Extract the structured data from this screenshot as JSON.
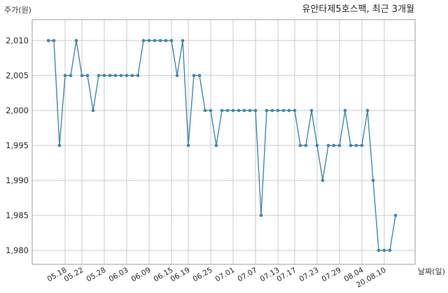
{
  "chart_data": {
    "type": "line",
    "title": "유안타제5호스팩, 최근 3개월",
    "xlabel": "날짜(일)",
    "ylabel": "주가(원)",
    "ylim": [
      1978,
      2013
    ],
    "yticks": [
      1980,
      1985,
      1990,
      1995,
      2000,
      2005,
      2010
    ],
    "ytick_labels": [
      "1,980",
      "1,985",
      "1,990",
      "1,995",
      "2,000",
      "2,005",
      "2,010"
    ],
    "xtick_labels": [
      "05.18",
      "05.22",
      "05.28",
      "06.03",
      "06.09",
      "06.15",
      "06.19",
      "06.25",
      "07.01",
      "07.07",
      "07.13",
      "07.17",
      "07.23",
      "07.29",
      "08.04",
      "20.08.10"
    ],
    "xtick_index": [
      3,
      6,
      10,
      14,
      18,
      22,
      25,
      29,
      33,
      37,
      41,
      44,
      48,
      52,
      56,
      60
    ],
    "grid": true,
    "color": "#3a85b0",
    "series": [
      {
        "values": [
          2010,
          2010,
          1995,
          2005,
          2005,
          2010,
          2005,
          2005,
          2000,
          2005,
          2005,
          2005,
          2005,
          2005,
          2005,
          2005,
          2005,
          2010,
          2010,
          2010,
          2010,
          2010,
          2010,
          2005,
          2010,
          1995,
          2005,
          2005,
          2000,
          2000,
          1995,
          2000,
          2000,
          2000,
          2000,
          2000,
          2000,
          2000,
          1985,
          2000,
          2000,
          2000,
          2000,
          2000,
          2000,
          1995,
          1995,
          2000,
          1995,
          1990,
          1995,
          1995,
          1995,
          2000,
          1995,
          1995,
          1995,
          2000,
          1990,
          1980,
          1980,
          1980,
          1985
        ]
      }
    ]
  }
}
